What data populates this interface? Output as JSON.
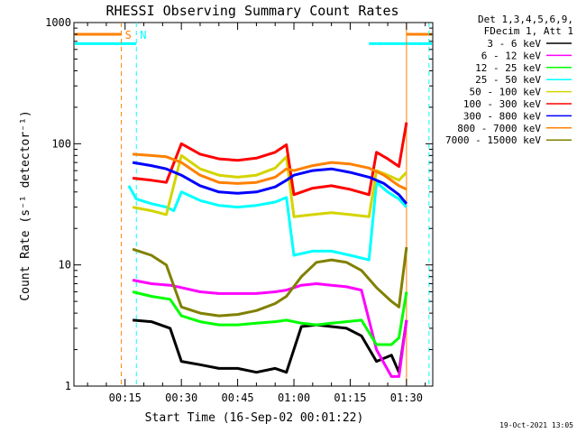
{
  "chart_data": {
    "type": "line",
    "title": "RHESSI Observing Summary Count Rates",
    "xlabel": "Start Time (16-Sep-02 00:01:22)",
    "ylabel": "Count Rate (s⁻¹ detector⁻¹)",
    "yscale": "log",
    "ylim": [
      1,
      1000
    ],
    "xlim": [
      "00:01:22",
      "01:37:00"
    ],
    "x_ticks": [
      "00:15",
      "00:30",
      "00:45",
      "01:00",
      "01:15",
      "01:30"
    ],
    "y_ticks": [
      "1",
      "10",
      "100",
      "1000"
    ],
    "legend_header": [
      "Det 1,3,4,5,6,9,",
      "FDecim 1, Att 1"
    ],
    "series": [
      {
        "name": "3 - 6 keV",
        "color": "#000000",
        "x": [
          "00:17",
          "00:22",
          "00:27",
          "00:30",
          "00:35",
          "00:40",
          "00:45",
          "00:50",
          "00:55",
          "00:58",
          "01:02",
          "01:06",
          "01:10",
          "01:14",
          "01:18",
          "01:22",
          "01:26",
          "01:28",
          "01:30"
        ],
        "y": [
          3.5,
          3.4,
          3.0,
          1.6,
          1.5,
          1.4,
          1.4,
          1.3,
          1.4,
          1.3,
          3.1,
          3.2,
          3.1,
          3.0,
          2.6,
          1.6,
          1.8,
          1.3,
          3.5
        ]
      },
      {
        "name": "6 - 12 keV",
        "color": "#ff00ff",
        "x": [
          "00:17",
          "00:22",
          "00:27",
          "00:30",
          "00:35",
          "00:40",
          "00:45",
          "00:50",
          "00:55",
          "00:58",
          "01:02",
          "01:06",
          "01:10",
          "01:14",
          "01:18",
          "01:22",
          "01:26",
          "01:28",
          "01:30"
        ],
        "y": [
          7.5,
          7.0,
          6.8,
          6.5,
          6.0,
          5.8,
          5.8,
          5.8,
          6.0,
          6.2,
          6.8,
          7.0,
          6.8,
          6.6,
          6.2,
          2.0,
          1.2,
          1.2,
          3.5
        ]
      },
      {
        "name": "12 - 25 keV",
        "color": "#00ff00",
        "x": [
          "00:17",
          "00:22",
          "00:27",
          "00:30",
          "00:35",
          "00:40",
          "00:45",
          "00:50",
          "00:55",
          "00:58",
          "01:02",
          "01:06",
          "01:10",
          "01:14",
          "01:18",
          "01:22",
          "01:26",
          "01:28",
          "01:30"
        ],
        "y": [
          6.0,
          5.5,
          5.2,
          3.8,
          3.4,
          3.2,
          3.2,
          3.3,
          3.4,
          3.5,
          3.3,
          3.2,
          3.3,
          3.4,
          3.5,
          2.2,
          2.2,
          2.5,
          6.0
        ]
      },
      {
        "name": "25 - 50 keV",
        "color": "#00ffff",
        "x": [
          "00:16",
          "00:18",
          "00:22",
          "00:26",
          "00:28",
          "00:30",
          "00:35",
          "00:40",
          "00:45",
          "00:50",
          "00:55",
          "00:58",
          "01:00",
          "01:05",
          "01:10",
          "01:15",
          "01:20",
          "01:22",
          "01:25",
          "01:28",
          "01:30"
        ],
        "y": [
          45,
          35,
          32,
          30,
          28,
          40,
          34,
          31,
          30,
          31,
          33,
          36,
          12,
          13,
          13,
          12,
          11,
          48,
          40,
          35,
          30
        ]
      },
      {
        "name": "50 - 100 keV",
        "color": "#d4d400",
        "x": [
          "00:17",
          "00:22",
          "00:26",
          "00:30",
          "00:35",
          "00:40",
          "00:45",
          "00:50",
          "00:55",
          "00:58",
          "01:00",
          "01:05",
          "01:10",
          "01:15",
          "01:20",
          "01:22",
          "01:25",
          "01:28",
          "01:30"
        ],
        "y": [
          30,
          28,
          26,
          80,
          62,
          55,
          53,
          55,
          63,
          78,
          25,
          26,
          27,
          26,
          25,
          60,
          55,
          50,
          58
        ]
      },
      {
        "name": "100 - 300 keV",
        "color": "#ff0000",
        "x": [
          "00:17",
          "00:22",
          "00:26",
          "00:30",
          "00:35",
          "00:40",
          "00:45",
          "00:50",
          "00:55",
          "00:58",
          "01:00",
          "01:05",
          "01:10",
          "01:15",
          "01:20",
          "01:22",
          "01:25",
          "01:28",
          "01:30"
        ],
        "y": [
          52,
          50,
          48,
          100,
          82,
          75,
          73,
          76,
          85,
          98,
          38,
          43,
          45,
          42,
          38,
          85,
          75,
          65,
          150
        ]
      },
      {
        "name": "300 - 800 keV",
        "color": "#0000ff",
        "x": [
          "00:17",
          "00:22",
          "00:26",
          "00:30",
          "00:35",
          "00:40",
          "00:45",
          "00:50",
          "00:55",
          "00:58",
          "01:00",
          "01:05",
          "01:10",
          "01:15",
          "01:20",
          "01:24",
          "01:28",
          "01:30"
        ],
        "y": [
          70,
          66,
          62,
          55,
          45,
          40,
          39,
          40,
          44,
          50,
          55,
          60,
          62,
          58,
          53,
          47,
          38,
          32
        ]
      },
      {
        "name": "800 - 7000 keV",
        "color": "#ff8000",
        "x": [
          "00:17",
          "00:22",
          "00:26",
          "00:30",
          "00:35",
          "00:40",
          "00:45",
          "00:50",
          "00:55",
          "00:58",
          "01:00",
          "01:05",
          "01:10",
          "01:15",
          "01:20",
          "01:24",
          "01:28",
          "01:30"
        ],
        "y": [
          82,
          80,
          78,
          70,
          55,
          48,
          47,
          48,
          53,
          62,
          60,
          66,
          70,
          68,
          63,
          55,
          45,
          42
        ]
      },
      {
        "name": "7000 - 15000 keV",
        "color": "#808000",
        "x": [
          "00:17",
          "00:22",
          "00:26",
          "00:30",
          "00:35",
          "00:40",
          "00:45",
          "00:50",
          "00:55",
          "00:58",
          "01:02",
          "01:06",
          "01:10",
          "01:14",
          "01:18",
          "01:22",
          "01:26",
          "01:28",
          "01:30"
        ],
        "y": [
          13.5,
          12.0,
          10.0,
          4.5,
          4.0,
          3.8,
          3.9,
          4.2,
          4.8,
          5.5,
          8.0,
          10.5,
          11.0,
          10.5,
          9.0,
          6.5,
          5.0,
          4.5,
          14.0
        ]
      }
    ],
    "markers": [
      {
        "label": "S",
        "time": "00:14",
        "style": "dashed",
        "color": "#ff8000",
        "type": "saa"
      },
      {
        "label": "N",
        "time": "00:18",
        "style": "dashed",
        "color": "#00ffff",
        "type": "night"
      },
      {
        "label": "",
        "time": "01:30",
        "style": "solid",
        "color": "#ff8000",
        "type": "saa"
      },
      {
        "label": "",
        "time": "01:36",
        "style": "dashed",
        "color": "#00ffff",
        "type": "night"
      }
    ],
    "flags": [
      {
        "color": "#ff8000",
        "value": 800,
        "segments": [
          [
            "00:01:22",
            "00:14"
          ],
          [
            "01:30",
            "01:37"
          ]
        ]
      },
      {
        "color": "#00ffff",
        "value": 670,
        "segments": [
          [
            "00:01:22",
            "00:18"
          ],
          [
            "01:20",
            "01:37"
          ]
        ]
      }
    ],
    "timestamp": "19-Oct-2021 13:05"
  }
}
